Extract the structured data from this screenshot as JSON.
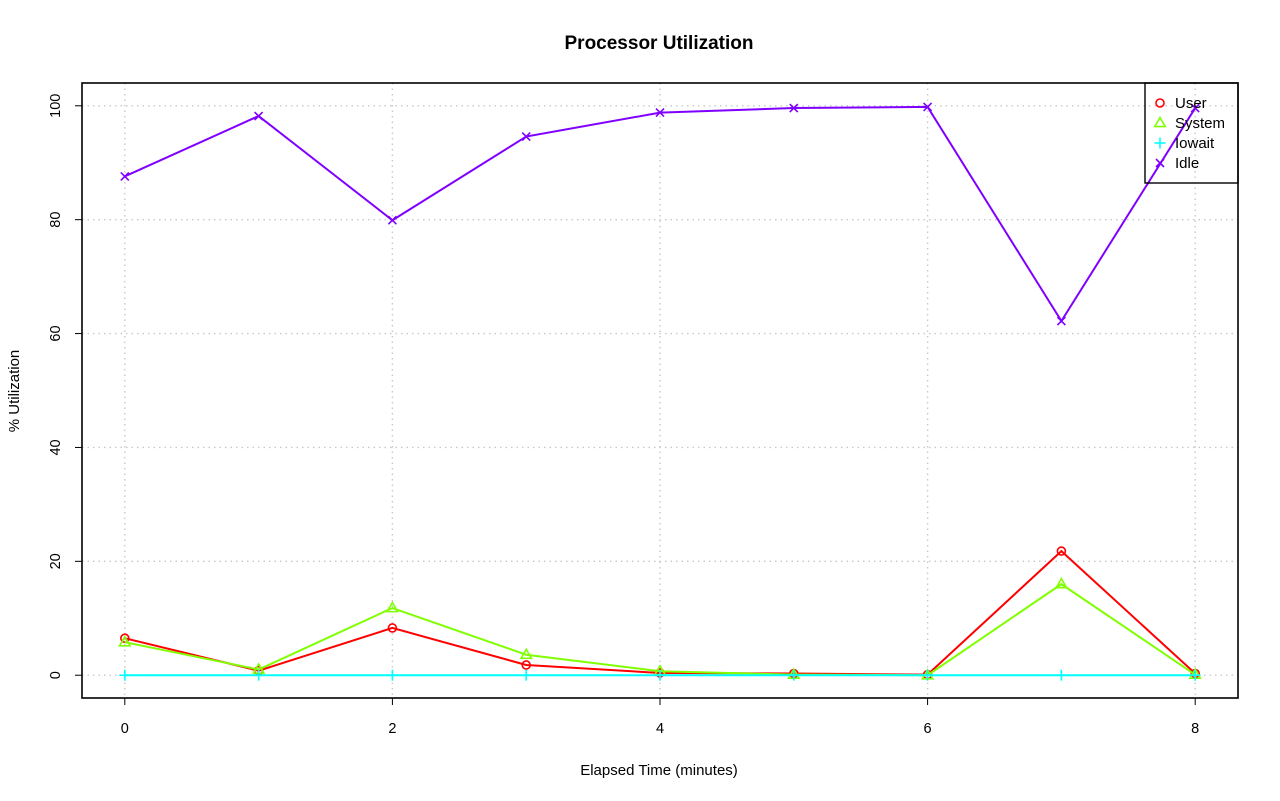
{
  "chart_data": {
    "type": "line",
    "title": "Processor Utilization",
    "xlabel": "Elapsed Time (minutes)",
    "ylabel": "% Utilization",
    "x": [
      0,
      1,
      2,
      3,
      4,
      5,
      6,
      7,
      8
    ],
    "xlim": [
      -0.32,
      8.32
    ],
    "ylim": [
      -4,
      104
    ],
    "xticks": [
      0,
      2,
      4,
      6,
      8
    ],
    "yticks": [
      0,
      20,
      40,
      60,
      80,
      100
    ],
    "grid": true,
    "legend_position": "top-right",
    "series": [
      {
        "name": "User",
        "color": "#ff0000",
        "marker": "circle",
        "values": [
          6.5,
          0.8,
          8.3,
          1.8,
          0.4,
          0.3,
          0.1,
          21.8,
          0.3
        ]
      },
      {
        "name": "System",
        "color": "#80ff00",
        "marker": "triangle",
        "values": [
          5.8,
          1.0,
          11.8,
          3.6,
          0.7,
          0.1,
          0.0,
          16.0,
          0.1
        ]
      },
      {
        "name": "Iowait",
        "color": "#00ffff",
        "marker": "plus",
        "values": [
          0.0,
          0.0,
          0.0,
          0.0,
          0.0,
          0.0,
          0.0,
          0.0,
          0.0
        ]
      },
      {
        "name": "Idle",
        "color": "#8000ff",
        "marker": "cross",
        "values": [
          87.6,
          98.2,
          79.9,
          94.6,
          98.8,
          99.6,
          99.8,
          62.2,
          99.6
        ]
      }
    ]
  }
}
